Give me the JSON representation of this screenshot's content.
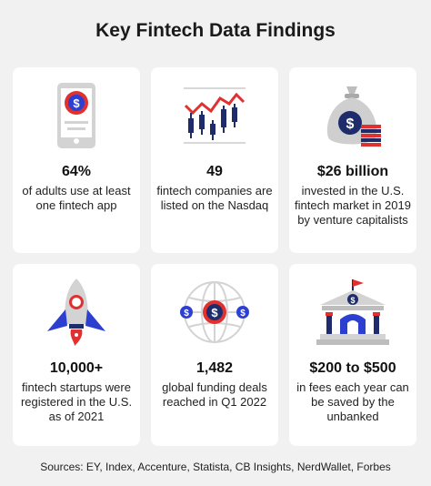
{
  "title": "Key Fintech Data Findings",
  "cards": [
    {
      "value": "64%",
      "desc": "of adults use at least one fintech app",
      "icon": "smartphone-dollar-icon"
    },
    {
      "value": "49",
      "desc": "fintech companies are listed on the Nasdaq",
      "icon": "candlestick-chart-icon"
    },
    {
      "value": "$26 billion",
      "desc": "invested in the U.S. fintech market in 2019 by venture capitalists",
      "icon": "money-bag-icon"
    },
    {
      "value": "10,000+",
      "desc": "fintech startups were registered in the U.S. as of 2021",
      "icon": "rocket-icon"
    },
    {
      "value": "1,482",
      "desc": "global funding deals reached in Q1 2022",
      "icon": "globe-dollar-icon"
    },
    {
      "value": "$200 to $500",
      "desc": "in fees each year can be saved by the unbanked",
      "icon": "bank-icon"
    }
  ],
  "sources": "Sources: EY, Index, Accenture, Statista, CB Insights, NerdWallet, Forbes",
  "colors": {
    "red": "#e0302f",
    "navy": "#1f2c6b",
    "gray": "#cfcfcf",
    "blue": "#2d3fd1"
  }
}
